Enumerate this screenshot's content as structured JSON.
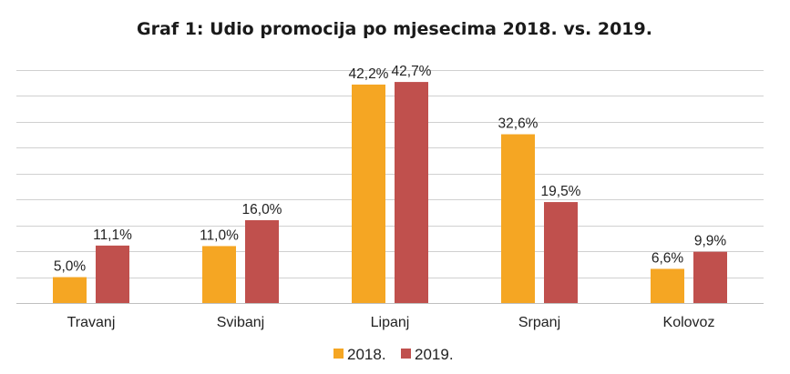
{
  "chart_data": {
    "type": "bar",
    "title": "Graf 1: Udio promocija po mjesecima 2018. vs. 2019.",
    "categories": [
      "Travanj",
      "Svibanj",
      "Lipanj",
      "Srpanj",
      "Kolovoz"
    ],
    "series": [
      {
        "name": "2018.",
        "color": "#F5A623",
        "values": [
          5.0,
          11.0,
          42.2,
          32.6,
          6.6
        ],
        "labels": [
          "5,0%",
          "11,0%",
          "42,2%",
          "32,6%",
          "6,6%"
        ]
      },
      {
        "name": "2019.",
        "color": "#C0504D",
        "values": [
          11.1,
          16.0,
          42.7,
          19.5,
          9.9
        ],
        "labels": [
          "11,1%",
          "16,0%",
          "42,7%",
          "19,5%",
          "9,9%"
        ]
      }
    ],
    "ylim": [
      0,
      45
    ],
    "grid": true,
    "legend": "bottom-center"
  }
}
